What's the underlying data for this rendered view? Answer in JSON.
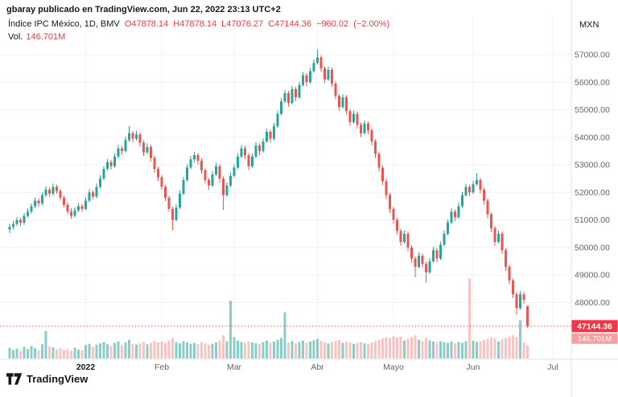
{
  "header": {
    "attribution": "gbaray publicado en TradingView.com, Jun 22, 2022 23:13 UTC+2",
    "symbol_line": {
      "title": "Índice IPC México, 1D, BMV",
      "ohlc_text": "O47878.14 H47878.14 L47076.27 C47144.36 −960.02 (−2.00%)",
      "open": "47878.14",
      "high": "47878.14",
      "low": "47076.27",
      "close": "47144.36",
      "change": "−960.02 (−2.00%)"
    },
    "volume_line": {
      "label": "Vol.",
      "value": "146.701M"
    }
  },
  "axes": {
    "currency": "MXN",
    "price_ticks": [
      {
        "value": 57000,
        "label": "57000.00"
      },
      {
        "value": 56000,
        "label": "56000.00"
      },
      {
        "value": 55000,
        "label": "55000.00"
      },
      {
        "value": 54000,
        "label": "54000.00"
      },
      {
        "value": 53000,
        "label": "53000.00"
      },
      {
        "value": 52000,
        "label": "52000.00"
      },
      {
        "value": 51000,
        "label": "51000.00"
      },
      {
        "value": 50000,
        "label": "50000.00"
      },
      {
        "value": 49000,
        "label": "49000.00"
      },
      {
        "value": 48000,
        "label": "48000.00"
      }
    ],
    "time_ticks": [
      {
        "label": "2022",
        "index": 21,
        "bold": true
      },
      {
        "label": "Feb",
        "index": 42
      },
      {
        "label": "Mar",
        "index": 62
      },
      {
        "label": "Abr",
        "index": 85
      },
      {
        "label": "Mayo",
        "index": 106
      },
      {
        "label": "Jun",
        "index": 128
      },
      {
        "label": "Jul",
        "index": 150
      }
    ],
    "last_price_label": "47144.36",
    "last_volume_label": "146.701M"
  },
  "footer": {
    "logo_text": "TradingView"
  },
  "chart_data": {
    "type": "candlestick",
    "title": "Índice IPC México, 1D, BMV",
    "timeframe": "1D",
    "exchange": "BMV",
    "currency": "MXN",
    "ylim": [
      46800,
      57600
    ],
    "grid": true,
    "last_close": 47144.36,
    "last_change": "−960.02 (−2.00%)",
    "last_volume_millions": 146.701,
    "volume_scale_max_millions": 950,
    "colors": {
      "up": "#26a69a",
      "down": "#ef5350",
      "volume_up": "rgba(38,166,154,0.55)",
      "volume_down": "rgba(239,83,80,0.35)",
      "accent": "#f23645",
      "volume_badge": "rgba(239,83,80,0.55)"
    },
    "candles": [
      [
        50650,
        50850,
        50520,
        50750
      ],
      [
        50750,
        50960,
        50650,
        50850
      ],
      [
        50850,
        51100,
        50780,
        51000
      ],
      [
        51000,
        51080,
        50780,
        50900
      ],
      [
        50900,
        51250,
        50820,
        51150
      ],
      [
        51150,
        51420,
        51080,
        51300
      ],
      [
        51300,
        51600,
        51220,
        51500
      ],
      [
        51500,
        51820,
        51420,
        51700
      ],
      [
        51700,
        51780,
        51480,
        51600
      ],
      [
        51600,
        52000,
        51530,
        51900
      ],
      [
        51900,
        52220,
        51830,
        52100
      ],
      [
        52100,
        52180,
        51850,
        51950
      ],
      [
        51950,
        52320,
        51880,
        52200
      ],
      [
        52200,
        52280,
        51950,
        52050
      ],
      [
        52050,
        52130,
        51700,
        51800
      ],
      [
        51800,
        51880,
        51450,
        51550
      ],
      [
        51550,
        51640,
        51200,
        51300
      ],
      [
        51300,
        51420,
        51040,
        51150
      ],
      [
        51150,
        51460,
        51080,
        51350
      ],
      [
        51350,
        51620,
        51280,
        51500
      ],
      [
        51500,
        51580,
        51300,
        51400
      ],
      [
        51400,
        51820,
        51350,
        51700
      ],
      [
        51700,
        52120,
        51640,
        52000
      ],
      [
        52000,
        52080,
        51740,
        51850
      ],
      [
        51850,
        52320,
        51780,
        52200
      ],
      [
        52200,
        52620,
        52140,
        52500
      ],
      [
        52500,
        52960,
        52440,
        52850
      ],
      [
        52850,
        53220,
        52790,
        53100
      ],
      [
        53100,
        53180,
        52830,
        52950
      ],
      [
        52950,
        53420,
        52890,
        53300
      ],
      [
        53300,
        53720,
        53240,
        53600
      ],
      [
        53600,
        53680,
        53360,
        53500
      ],
      [
        53500,
        54020,
        53440,
        53900
      ],
      [
        53900,
        54400,
        53840,
        54150
      ],
      [
        54150,
        54230,
        53820,
        53950
      ],
      [
        53950,
        54250,
        53880,
        54100
      ],
      [
        54100,
        54180,
        53660,
        53800
      ],
      [
        53800,
        53880,
        53320,
        53450
      ],
      [
        53450,
        53780,
        53380,
        53650
      ],
      [
        53650,
        53730,
        53110,
        53250
      ],
      [
        53250,
        53330,
        52720,
        52850
      ],
      [
        52850,
        52930,
        52420,
        52550
      ],
      [
        52550,
        52630,
        52100,
        52200
      ],
      [
        52200,
        52280,
        51690,
        51800
      ],
      [
        51800,
        51880,
        51300,
        51400
      ],
      [
        51400,
        51480,
        50620,
        51000
      ],
      [
        51000,
        51570,
        50940,
        51450
      ],
      [
        51450,
        52070,
        51390,
        51950
      ],
      [
        51950,
        52570,
        51890,
        52450
      ],
      [
        52450,
        53020,
        52390,
        52900
      ],
      [
        52900,
        53320,
        52840,
        53200
      ],
      [
        53200,
        53470,
        53090,
        53350
      ],
      [
        53350,
        53430,
        53010,
        53150
      ],
      [
        53150,
        53230,
        52670,
        52800
      ],
      [
        52800,
        52880,
        52330,
        52450
      ],
      [
        52450,
        52530,
        52090,
        52250
      ],
      [
        52250,
        52770,
        52190,
        52650
      ],
      [
        52650,
        53070,
        52590,
        52950
      ],
      [
        52950,
        53030,
        52360,
        52500
      ],
      [
        52500,
        52580,
        51360,
        51900
      ],
      [
        51900,
        52370,
        51840,
        52250
      ],
      [
        52250,
        52720,
        52190,
        52600
      ],
      [
        52600,
        53020,
        52540,
        52900
      ],
      [
        52900,
        53420,
        52840,
        53300
      ],
      [
        53300,
        53720,
        53240,
        53600
      ],
      [
        53600,
        53680,
        53210,
        53350
      ],
      [
        53350,
        53430,
        52810,
        52950
      ],
      [
        52950,
        53420,
        52890,
        53300
      ],
      [
        53300,
        53820,
        53240,
        53700
      ],
      [
        53700,
        53780,
        53360,
        53500
      ],
      [
        53500,
        53970,
        53440,
        53850
      ],
      [
        53850,
        54320,
        53790,
        54200
      ],
      [
        54200,
        54280,
        53810,
        53950
      ],
      [
        53950,
        54520,
        53890,
        54400
      ],
      [
        54400,
        54970,
        54340,
        54850
      ],
      [
        54850,
        55420,
        54790,
        55300
      ],
      [
        55300,
        55720,
        55240,
        55600
      ],
      [
        55600,
        55680,
        55110,
        55250
      ],
      [
        55250,
        55870,
        55190,
        55750
      ],
      [
        55750,
        55830,
        55310,
        55450
      ],
      [
        55450,
        56020,
        55390,
        55900
      ],
      [
        55900,
        56370,
        55840,
        56250
      ],
      [
        56250,
        56330,
        55860,
        56000
      ],
      [
        56000,
        56520,
        55940,
        56400
      ],
      [
        56400,
        56820,
        56340,
        56700
      ],
      [
        56700,
        57190,
        56640,
        56900
      ],
      [
        56900,
        56980,
        56380,
        56500
      ],
      [
        56500,
        56580,
        55960,
        56100
      ],
      [
        56100,
        56570,
        56040,
        56450
      ],
      [
        56450,
        56530,
        55830,
        55950
      ],
      [
        55950,
        56030,
        55380,
        55500
      ],
      [
        55500,
        55580,
        54960,
        55100
      ],
      [
        55100,
        55570,
        55040,
        55450
      ],
      [
        55450,
        55530,
        54830,
        54950
      ],
      [
        54950,
        55030,
        54420,
        54550
      ],
      [
        54550,
        54970,
        54490,
        54850
      ],
      [
        54850,
        54930,
        54320,
        54450
      ],
      [
        54450,
        54530,
        54010,
        54150
      ],
      [
        54150,
        54620,
        54090,
        54500
      ],
      [
        54500,
        54580,
        54100,
        54250
      ],
      [
        54250,
        54330,
        53710,
        53850
      ],
      [
        53850,
        53930,
        53260,
        53400
      ],
      [
        53400,
        53480,
        52760,
        52900
      ],
      [
        52900,
        52980,
        52260,
        52400
      ],
      [
        52400,
        52480,
        51760,
        51900
      ],
      [
        51900,
        51980,
        51260,
        51400
      ],
      [
        51400,
        51480,
        50860,
        51000
      ],
      [
        51000,
        51080,
        50460,
        50600
      ],
      [
        50600,
        50680,
        50060,
        50200
      ],
      [
        50200,
        50620,
        50140,
        50500
      ],
      [
        50500,
        50580,
        49860,
        50000
      ],
      [
        50000,
        50080,
        49460,
        49600
      ],
      [
        49600,
        49680,
        48920,
        49300
      ],
      [
        49300,
        49820,
        49240,
        49700
      ],
      [
        49700,
        49780,
        49260,
        49400
      ],
      [
        49400,
        49480,
        48720,
        49100
      ],
      [
        49100,
        49620,
        49040,
        49500
      ],
      [
        49500,
        50020,
        49440,
        49900
      ],
      [
        49900,
        49980,
        49460,
        49600
      ],
      [
        49600,
        50220,
        49540,
        50100
      ],
      [
        50100,
        50620,
        50040,
        50500
      ],
      [
        50500,
        51020,
        50440,
        50900
      ],
      [
        50900,
        51420,
        50840,
        51300
      ],
      [
        51300,
        51380,
        50960,
        51100
      ],
      [
        51100,
        51620,
        51040,
        51500
      ],
      [
        51500,
        52020,
        51440,
        51900
      ],
      [
        51900,
        52320,
        51840,
        52200
      ],
      [
        52200,
        52280,
        51860,
        52000
      ],
      [
        52000,
        52420,
        51940,
        52300
      ],
      [
        52300,
        52700,
        52240,
        52450
      ],
      [
        52450,
        52530,
        51960,
        52100
      ],
      [
        52100,
        52180,
        51560,
        51700
      ],
      [
        51700,
        51780,
        51060,
        51200
      ],
      [
        51200,
        51280,
        50560,
        50700
      ],
      [
        50700,
        50780,
        50060,
        50200
      ],
      [
        50200,
        50620,
        50140,
        50500
      ],
      [
        50500,
        50580,
        49760,
        49900
      ],
      [
        49900,
        49980,
        49160,
        49300
      ],
      [
        49300,
        49380,
        48660,
        48800
      ],
      [
        48800,
        48880,
        48160,
        48300
      ],
      [
        48300,
        48380,
        47560,
        47800
      ],
      [
        47800,
        48420,
        47740,
        48300
      ],
      [
        48300,
        48380,
        47960,
        48100
      ],
      [
        47878.14,
        47878.14,
        47076.27,
        47144.36
      ]
    ],
    "volumes_millions": [
      120,
      95,
      110,
      85,
      130,
      105,
      140,
      115,
      90,
      160,
      310,
      135,
      125,
      100,
      115,
      95,
      105,
      88,
      120,
      98,
      92,
      150,
      165,
      130,
      155,
      170,
      185,
      160,
      140,
      175,
      190,
      150,
      180,
      210,
      165,
      155,
      170,
      185,
      160,
      175,
      195,
      180,
      190,
      175,
      200,
      230,
      185,
      170,
      195,
      180,
      165,
      175,
      160,
      185,
      170,
      155,
      165,
      180,
      200,
      260,
      190,
      650,
      240,
      200,
      185,
      175,
      190,
      180,
      170,
      165,
      185,
      200,
      175,
      190,
      210,
      230,
      520,
      180,
      195,
      170,
      185,
      200,
      175,
      190,
      205,
      220,
      195,
      180,
      170,
      185,
      195,
      205,
      175,
      190,
      180,
      165,
      175,
      185,
      170,
      160,
      180,
      195,
      210,
      225,
      240,
      230,
      250,
      235,
      245,
      200,
      220,
      240,
      260,
      210,
      195,
      230,
      205,
      190,
      180,
      195,
      185,
      175,
      190,
      170,
      185,
      175,
      195,
      900,
      200,
      185,
      195,
      210,
      220,
      235,
      225,
      190,
      215,
      230,
      245,
      260,
      240,
      430,
      180,
      146.701
    ]
  }
}
